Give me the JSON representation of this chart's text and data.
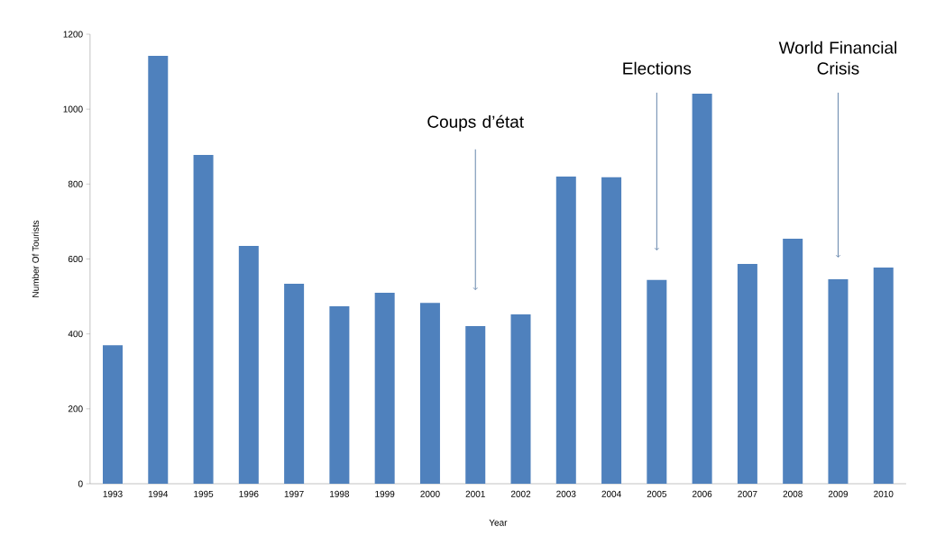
{
  "chart_data": {
    "type": "bar",
    "xlabel": "Year",
    "ylabel": "Number Of Tourists",
    "categories": [
      "1993",
      "1994",
      "1995",
      "1996",
      "1997",
      "1998",
      "1999",
      "2000",
      "2001",
      "2002",
      "2003",
      "2004",
      "2005",
      "2006",
      "2007",
      "2008",
      "2009",
      "2010"
    ],
    "values": [
      370,
      1142,
      878,
      635,
      534,
      474,
      510,
      483,
      421,
      452,
      820,
      818,
      544,
      1041,
      587,
      654,
      546,
      577
    ],
    "color": "#4f81bd",
    "ylim": [
      0,
      1200
    ],
    "yticks": [
      0,
      200,
      400,
      600,
      800,
      1000,
      1200
    ],
    "grid": false,
    "annotations": [
      {
        "text": "Coups d’état",
        "x": "2001",
        "y": 517
      },
      {
        "text": "Elections",
        "x": "2005",
        "y": 623
      },
      {
        "text": "World Financial Crisis",
        "x": "2009",
        "y": 604
      }
    ]
  }
}
